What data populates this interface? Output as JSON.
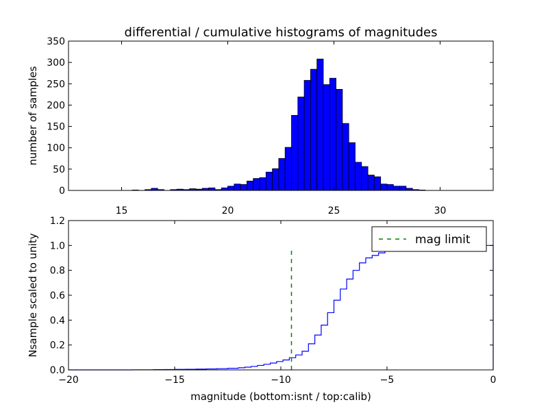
{
  "chart_data": [
    {
      "type": "bar",
      "title": "differential / cumulative histograms of magnitudes",
      "xlabel": "",
      "ylabel": "number of samples",
      "xlim": [
        12.5,
        32.5
      ],
      "ylim": [
        0,
        350
      ],
      "xticks": [
        15,
        20,
        25,
        30
      ],
      "yticks": [
        0,
        50,
        100,
        150,
        200,
        250,
        300,
        350
      ],
      "bin_width": 0.3,
      "color": "#0000ff",
      "bins": [
        {
          "x": 15.5,
          "y": 1
        },
        {
          "x": 15.8,
          "y": 0
        },
        {
          "x": 16.1,
          "y": 2
        },
        {
          "x": 16.4,
          "y": 5
        },
        {
          "x": 16.7,
          "y": 2
        },
        {
          "x": 17.0,
          "y": 0
        },
        {
          "x": 17.3,
          "y": 2
        },
        {
          "x": 17.6,
          "y": 3
        },
        {
          "x": 17.9,
          "y": 2
        },
        {
          "x": 18.2,
          "y": 4
        },
        {
          "x": 18.5,
          "y": 3
        },
        {
          "x": 18.8,
          "y": 5
        },
        {
          "x": 19.1,
          "y": 6
        },
        {
          "x": 19.4,
          "y": 2
        },
        {
          "x": 19.7,
          "y": 6
        },
        {
          "x": 20.0,
          "y": 10
        },
        {
          "x": 20.3,
          "y": 15
        },
        {
          "x": 20.6,
          "y": 14
        },
        {
          "x": 20.9,
          "y": 22
        },
        {
          "x": 21.2,
          "y": 28
        },
        {
          "x": 21.5,
          "y": 30
        },
        {
          "x": 21.8,
          "y": 43
        },
        {
          "x": 22.1,
          "y": 51
        },
        {
          "x": 22.4,
          "y": 75
        },
        {
          "x": 22.7,
          "y": 101
        },
        {
          "x": 23.0,
          "y": 176
        },
        {
          "x": 23.3,
          "y": 219
        },
        {
          "x": 23.6,
          "y": 258
        },
        {
          "x": 23.9,
          "y": 284
        },
        {
          "x": 24.2,
          "y": 308
        },
        {
          "x": 24.5,
          "y": 248
        },
        {
          "x": 24.8,
          "y": 263
        },
        {
          "x": 25.1,
          "y": 237
        },
        {
          "x": 25.4,
          "y": 157
        },
        {
          "x": 25.7,
          "y": 112
        },
        {
          "x": 26.0,
          "y": 66
        },
        {
          "x": 26.3,
          "y": 56
        },
        {
          "x": 26.6,
          "y": 36
        },
        {
          "x": 26.9,
          "y": 32
        },
        {
          "x": 27.2,
          "y": 15
        },
        {
          "x": 27.5,
          "y": 14
        },
        {
          "x": 27.8,
          "y": 10
        },
        {
          "x": 28.1,
          "y": 10
        },
        {
          "x": 28.4,
          "y": 5
        },
        {
          "x": 28.7,
          "y": 2
        },
        {
          "x": 29.0,
          "y": 1
        }
      ]
    },
    {
      "type": "line",
      "title": "",
      "xlabel": "magnitude (bottom:isnt / top:calib)",
      "ylabel": "Nsample scaled to unity",
      "xlim": [
        -20,
        0
      ],
      "ylim": [
        0,
        1.2
      ],
      "xticks": [
        -20,
        -15,
        -10,
        -5,
        0
      ],
      "xtick_labels": [
        "−20",
        "−15",
        "−10",
        "−5",
        "0"
      ],
      "yticks": [
        0,
        0.2,
        0.4,
        0.6,
        0.8,
        1.0,
        1.2
      ],
      "ytick_labels": [
        "0.0",
        "0.2",
        "0.4",
        "0.6",
        "0.8",
        "1.0",
        "1.2"
      ],
      "legend": {
        "location": "upper right",
        "entries": [
          {
            "label": "mag limit",
            "style": "dashed",
            "color": "#008000"
          }
        ]
      },
      "series": [
        {
          "name": "",
          "style": "steps",
          "color": "#0000ff",
          "x": [
            -20,
            -17,
            -16.0,
            -15.5,
            -15.0,
            -14.5,
            -14.0,
            -13.5,
            -13.0,
            -12.5,
            -12.0,
            -11.7,
            -11.4,
            -11.1,
            -10.8,
            -10.5,
            -10.2,
            -9.9,
            -9.6,
            -9.3,
            -9.0,
            -8.7,
            -8.4,
            -8.1,
            -7.8,
            -7.5,
            -7.2,
            -6.9,
            -6.6,
            -6.3,
            -6.0,
            -5.7,
            -5.4,
            -5.1,
            -4.8,
            -4.5,
            -4.2,
            -3.9,
            -3.6,
            -3.3,
            -3.0,
            -2.7,
            -2.4,
            -2.1,
            -1.8,
            -1.5,
            -1.2,
            -0.9,
            -0.6,
            -0.3,
            0
          ],
          "y": [
            0.0,
            0.001,
            0.002,
            0.003,
            0.004,
            0.005,
            0.006,
            0.008,
            0.01,
            0.013,
            0.017,
            0.022,
            0.028,
            0.036,
            0.045,
            0.055,
            0.067,
            0.08,
            0.098,
            0.12,
            0.15,
            0.21,
            0.28,
            0.36,
            0.46,
            0.56,
            0.65,
            0.73,
            0.8,
            0.86,
            0.9,
            0.92,
            0.94,
            0.955,
            0.965,
            0.975,
            0.982,
            0.987,
            0.991,
            0.994,
            0.996,
            0.997,
            0.998,
            0.999,
            0.999,
            1.0,
            1.0,
            1.0,
            1.0,
            1.0,
            1.0
          ]
        }
      ],
      "mag_limit": {
        "x": -9.5,
        "y_range": [
          0,
          0.97
        ],
        "color": "#008000"
      }
    }
  ]
}
